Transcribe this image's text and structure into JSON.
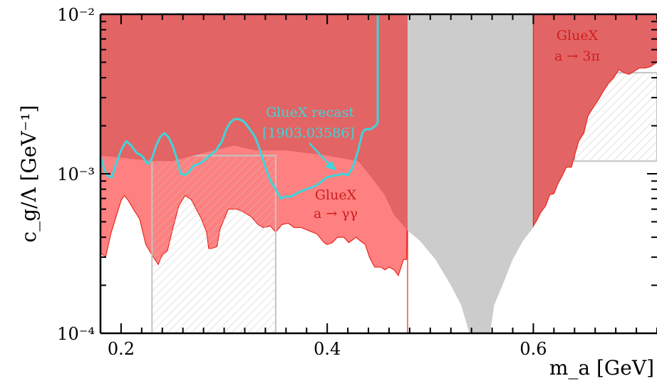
{
  "chart_data": {
    "type": "area",
    "xlabel": "m_a [GeV]",
    "ylabel": "c_g/Λ [GeV⁻¹]",
    "xlim": [
      0.18,
      0.72
    ],
    "ylim": [
      0.0001,
      0.01
    ],
    "yscale": "log",
    "x_ticks": [
      {
        "value": 0.2,
        "label": "0.2"
      },
      {
        "value": 0.4,
        "label": "0.4"
      },
      {
        "value": 0.6,
        "label": "0.6"
      }
    ],
    "y_ticks": [
      {
        "value": 0.0001,
        "label": "10⁻⁴"
      },
      {
        "value": 0.001,
        "label": "10⁻³"
      },
      {
        "value": 0.01,
        "label": "10⁻²"
      }
    ],
    "colors": {
      "red_fill": "#ff8080",
      "dark_red_fill": "#e36464",
      "red_line": "#e8281e",
      "grey_fill": "#cccccc",
      "cyan_line": "#3cd6dc",
      "hatch_stroke": "#c4c4c4"
    },
    "annotations": {
      "recast_line1": "GlueX recast",
      "recast_line2": "[1903.03586]",
      "gg_line1": "GlueX",
      "gg_line2": "a → γγ",
      "pi3_line1": "GlueX",
      "pi3_line2": "a → 3π"
    },
    "series": [
      {
        "name": "GlueX a → γγ",
        "type": "area",
        "x": [
          0.18,
          0.185,
          0.19,
          0.2,
          0.203,
          0.207,
          0.212,
          0.218,
          0.224,
          0.23,
          0.236,
          0.24,
          0.245,
          0.25,
          0.256,
          0.262,
          0.268,
          0.273,
          0.278,
          0.283,
          0.285,
          0.288,
          0.293,
          0.296,
          0.3,
          0.304,
          0.309,
          0.312,
          0.318,
          0.326,
          0.333,
          0.338,
          0.345,
          0.35,
          0.356,
          0.362,
          0.368,
          0.375,
          0.382,
          0.39,
          0.397,
          0.4,
          0.405,
          0.41,
          0.416,
          0.421,
          0.428,
          0.432,
          0.437,
          0.441,
          0.446,
          0.452,
          0.456,
          0.46,
          0.465,
          0.469,
          0.474,
          0.477,
          0.478,
          0.478
        ],
        "lower": [
          0.00032,
          0.0003,
          0.00042,
          0.00068,
          0.00073,
          0.00068,
          0.0006,
          0.00052,
          0.00036,
          0.00031,
          0.00027,
          0.00031,
          0.00033,
          0.00045,
          0.00063,
          0.00073,
          0.00069,
          0.0006,
          0.00052,
          0.00043,
          0.00034,
          0.00034,
          0.00035,
          0.00045,
          0.00052,
          0.0006,
          0.0006,
          0.0006,
          0.00058,
          0.00054,
          0.00048,
          0.00046,
          0.00047,
          0.00043,
          0.00048,
          0.00049,
          0.00046,
          0.00046,
          0.00044,
          0.00042,
          0.00037,
          0.00036,
          0.00037,
          0.0004,
          0.0004,
          0.00037,
          0.0004,
          0.00038,
          0.00036,
          0.0003,
          0.00026,
          0.00026,
          0.00025,
          0.00026,
          0.00025,
          0.00023,
          0.00029,
          0.00029,
          0.0009,
          0.0001
        ],
        "upper": 0.01
      },
      {
        "name": "GlueX a → 3π",
        "type": "area",
        "x": [
          0.6,
          0.6,
          0.604,
          0.607,
          0.612,
          0.616,
          0.62,
          0.624,
          0.628,
          0.632,
          0.637,
          0.64,
          0.644,
          0.649,
          0.653,
          0.658,
          0.663,
          0.668,
          0.673,
          0.678,
          0.683,
          0.688,
          0.693,
          0.698,
          0.703,
          0.709,
          0.714,
          0.72
        ],
        "lower": [
          0.01,
          0.00047,
          0.00052,
          0.00057,
          0.00063,
          0.00074,
          0.00075,
          0.00087,
          0.00097,
          0.0011,
          0.0011,
          0.0013,
          0.0016,
          0.0018,
          0.0023,
          0.0026,
          0.0029,
          0.0033,
          0.0037,
          0.004,
          0.0045,
          0.0043,
          0.0042,
          0.0044,
          0.0046,
          0.0046,
          0.0047,
          0.005
        ],
        "upper": 0.01
      },
      {
        "name": "Dark excluded band",
        "type": "area",
        "x": [
          0.18,
          0.23,
          0.25,
          0.29,
          0.31,
          0.33,
          0.36,
          0.4,
          0.43,
          0.44,
          0.455,
          0.465,
          0.478
        ],
        "lower": [
          0.0013,
          0.0012,
          0.0012,
          0.0014,
          0.0015,
          0.0014,
          0.0014,
          0.0013,
          0.0012,
          0.001,
          0.00075,
          0.00055,
          0.00044
        ],
        "upper": 0.01
      },
      {
        "name": "Grey band",
        "type": "area",
        "x": [
          0.478,
          0.49,
          0.505,
          0.52,
          0.53,
          0.538,
          0.542,
          0.558,
          0.562,
          0.57,
          0.58,
          0.59,
          0.6
        ],
        "lower": [
          0.00044,
          0.00038,
          0.00029,
          0.0002,
          0.00015,
          0.0001,
          0.0001,
          0.0001,
          0.00015,
          0.0002,
          0.00029,
          0.00038,
          0.00046
        ],
        "upper": 0.01
      },
      {
        "name": "Hatched region 1",
        "type": "area",
        "x": [
          0.23,
          0.35
        ],
        "lower": [
          0.0001,
          0.0001
        ],
        "upper": [
          0.0013,
          0.0013
        ]
      },
      {
        "name": "Hatched region 2",
        "type": "area",
        "x": [
          0.64,
          0.72
        ],
        "lower": [
          0.0012,
          0.0012
        ],
        "upper": [
          0.0043,
          0.0043
        ]
      },
      {
        "name": "GlueX recast [1903.03586]",
        "type": "line",
        "x": [
          0.18,
          0.184,
          0.187,
          0.191,
          0.195,
          0.2,
          0.205,
          0.21,
          0.215,
          0.22,
          0.226,
          0.23,
          0.234,
          0.238,
          0.242,
          0.246,
          0.25,
          0.254,
          0.258,
          0.262,
          0.266,
          0.27,
          0.275,
          0.28,
          0.286,
          0.292,
          0.298,
          0.302,
          0.306,
          0.31,
          0.315,
          0.32,
          0.325,
          0.33,
          0.335,
          0.34,
          0.345,
          0.35,
          0.355,
          0.36,
          0.365,
          0.37,
          0.375,
          0.38,
          0.385,
          0.39,
          0.395,
          0.4,
          0.405,
          0.41,
          0.415,
          0.42,
          0.425,
          0.43,
          0.434,
          0.437,
          0.442,
          0.447,
          0.449,
          0.449
        ],
        "y": [
          0.0013,
          0.00105,
          0.00097,
          0.00095,
          0.00115,
          0.0014,
          0.0016,
          0.0015,
          0.00135,
          0.0013,
          0.00115,
          0.00125,
          0.0015,
          0.0017,
          0.0018,
          0.0017,
          0.0015,
          0.00125,
          0.001,
          0.00098,
          0.00103,
          0.00112,
          0.00115,
          0.0012,
          0.0013,
          0.0014,
          0.0016,
          0.0019,
          0.0021,
          0.0022,
          0.0022,
          0.0021,
          0.0019,
          0.0017,
          0.0014,
          0.0011,
          0.0009,
          0.0008,
          0.0007,
          0.00072,
          0.00072,
          0.00075,
          0.00078,
          0.0008,
          0.00082,
          0.00085,
          0.0009,
          0.00095,
          0.00097,
          0.00098,
          0.001,
          0.00098,
          0.0011,
          0.0014,
          0.0018,
          0.0019,
          0.0019,
          0.002,
          0.0021,
          0.01
        ]
      }
    ]
  }
}
